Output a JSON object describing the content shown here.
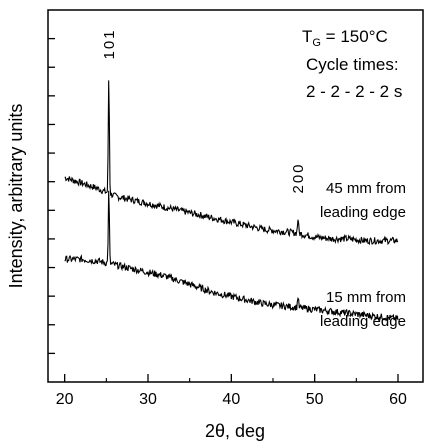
{
  "chart_data": {
    "type": "line",
    "xlabel": "2θ, deg",
    "ylabel": "Intensity, arbitrary units",
    "xlim": [
      18,
      63
    ],
    "x_ticks": [
      20,
      30,
      40,
      50,
      60
    ],
    "x_tick_labels": [
      "20",
      "30",
      "40",
      "50",
      "60"
    ],
    "y_tick_count": 12,
    "ylim": [
      0,
      100
    ],
    "grid": false,
    "annotation": {
      "tg_symbol": "T",
      "tg_sub": "G",
      "tg_value": " = 150°C",
      "cycle_line1": "Cycle times:",
      "cycle_line2": "2 - 2 - 2 - 2 s"
    },
    "peak_labels": [
      {
        "text": "101",
        "x": 25.3
      },
      {
        "text": "200",
        "x": 48.0
      }
    ],
    "series": [
      {
        "label_line1": "45 mm from",
        "label_line2": "leading edge",
        "peaks": [
          {
            "x": 25.3,
            "height": 32
          },
          {
            "x": 48.0,
            "height": 4
          }
        ],
        "points": [
          [
            20,
            55
          ],
          [
            22,
            53.5
          ],
          [
            24,
            52
          ],
          [
            25,
            51
          ],
          [
            26,
            50
          ],
          [
            28,
            49
          ],
          [
            30,
            48
          ],
          [
            32,
            47
          ],
          [
            34,
            46
          ],
          [
            36,
            45
          ],
          [
            38,
            44
          ],
          [
            40,
            43
          ],
          [
            42,
            42
          ],
          [
            44,
            41
          ],
          [
            46,
            40.5
          ],
          [
            48,
            40
          ],
          [
            50,
            39
          ],
          [
            52,
            38.5
          ],
          [
            54,
            38.5
          ],
          [
            56,
            38
          ],
          [
            58,
            38
          ],
          [
            60,
            38
          ]
        ]
      },
      {
        "label_line1": "15 mm from",
        "label_line2": "leading edge",
        "peaks": [
          {
            "x": 25.3,
            "height": 20
          },
          {
            "x": 48.0,
            "height": 3
          }
        ],
        "points": [
          [
            20,
            33
          ],
          [
            22,
            33
          ],
          [
            24,
            32.5
          ],
          [
            25,
            32
          ],
          [
            26,
            31.5
          ],
          [
            28,
            30.5
          ],
          [
            30,
            29.5
          ],
          [
            32,
            28.5
          ],
          [
            34,
            27
          ],
          [
            36,
            25.5
          ],
          [
            38,
            24
          ],
          [
            40,
            23
          ],
          [
            42,
            22
          ],
          [
            44,
            21
          ],
          [
            46,
            20.5
          ],
          [
            48,
            20
          ],
          [
            50,
            19.5
          ],
          [
            52,
            19
          ],
          [
            54,
            18.5
          ],
          [
            56,
            18
          ],
          [
            58,
            17.5
          ],
          [
            60,
            17
          ]
        ]
      }
    ]
  }
}
